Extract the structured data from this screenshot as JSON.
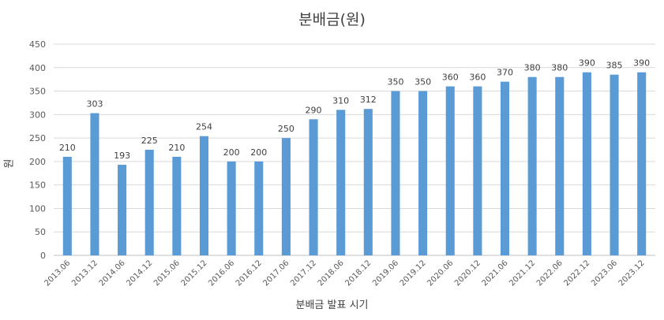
{
  "chart_data": {
    "type": "bar",
    "title": "분배금(원)",
    "xlabel": "분배금 발표 시기",
    "ylabel": "원",
    "ylim": [
      0,
      450
    ],
    "yticks": [
      0,
      50,
      100,
      150,
      200,
      250,
      300,
      350,
      400,
      450
    ],
    "grid": true,
    "bar_color": "#5b9bd5",
    "categories": [
      "2013.06",
      "2013.12",
      "2014.06",
      "2014.12",
      "2015.06",
      "2015.12",
      "2016.06",
      "2016.12",
      "2017.06",
      "2017.12",
      "2018.06",
      "2018.12",
      "2019.06",
      "2019.12",
      "2020.06",
      "2020.12",
      "2021.06",
      "2021.12",
      "2022.06",
      "2022.12",
      "2023.06",
      "2023.12"
    ],
    "values": [
      210,
      303,
      193,
      225,
      210,
      254,
      200,
      200,
      250,
      290,
      310,
      312,
      350,
      350,
      360,
      360,
      370,
      380,
      380,
      390,
      385,
      390
    ]
  }
}
